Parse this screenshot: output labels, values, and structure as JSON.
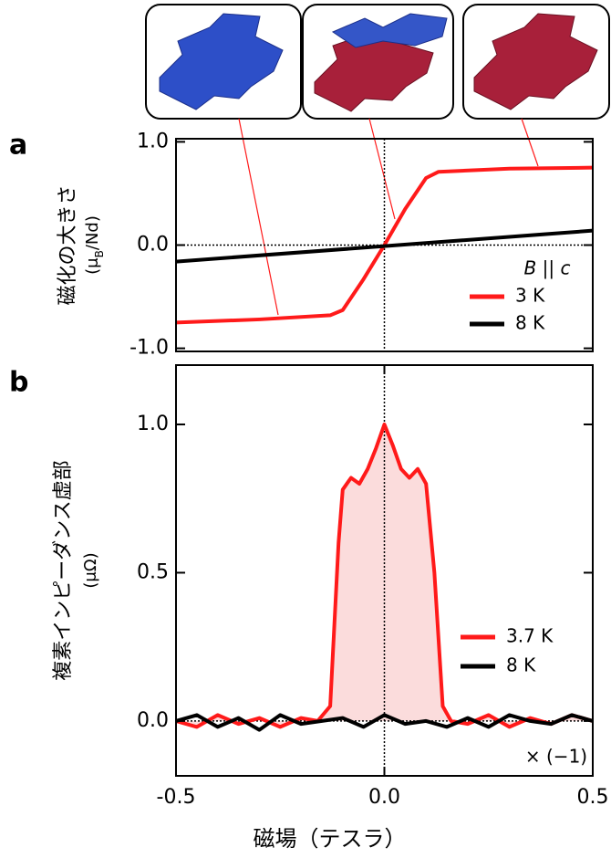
{
  "chart_data": [
    {
      "type": "line",
      "panel_label": "a",
      "y_label": "磁化の大きさ",
      "y_unit_parts": [
        "(μ",
        "B",
        "/Nd)"
      ],
      "annotation": "B || c",
      "xlim": [
        -0.5,
        0.5
      ],
      "ylim": [
        -1.03,
        1.03
      ],
      "yticks": [
        {
          "value": -1,
          "label": "-1.0"
        },
        {
          "value": 0,
          "label": "0.0"
        },
        {
          "value": 1,
          "label": "1.0"
        }
      ],
      "series": [
        {
          "name": "3 K",
          "color": "#ff1a1a",
          "x": [
            -0.5,
            -0.3,
            -0.13,
            -0.1,
            -0.05,
            0,
            0.05,
            0.1,
            0.13,
            0.3,
            0.5
          ],
          "values": [
            -0.75,
            -0.72,
            -0.68,
            -0.63,
            -0.33,
            0,
            0.35,
            0.65,
            0.71,
            0.74,
            0.75
          ]
        },
        {
          "name": "8 K",
          "color": "#000000",
          "x": [
            -0.5,
            0,
            0.5
          ],
          "values": [
            -0.16,
            -0.01,
            0.14
          ]
        }
      ]
    },
    {
      "type": "line",
      "panel_label": "b",
      "y_label": "複素インピーダンス虚部",
      "y_unit": "(μΩ)",
      "x_label": "磁場（テスラ）",
      "annotation": "× (−1)",
      "xlim": [
        -0.5,
        0.5
      ],
      "ylim": [
        -0.185,
        1.2
      ],
      "xticks": [
        {
          "value": -0.5,
          "label": "-0.5"
        },
        {
          "value": 0,
          "label": "0.0"
        },
        {
          "value": 0.5,
          "label": "0.5"
        }
      ],
      "yticks": [
        {
          "value": 0,
          "label": "0.0"
        },
        {
          "value": 0.5,
          "label": "0.5"
        },
        {
          "value": 1,
          "label": "1.0"
        }
      ],
      "series": [
        {
          "name": "3.7 K",
          "color": "#ff1a1a",
          "fill": "#fbdcdc",
          "x": [
            -0.5,
            -0.45,
            -0.4,
            -0.35,
            -0.3,
            -0.25,
            -0.2,
            -0.16,
            -0.13,
            -0.11,
            -0.1,
            -0.08,
            -0.06,
            -0.04,
            -0.02,
            0,
            0.02,
            0.04,
            0.06,
            0.08,
            0.1,
            0.12,
            0.14,
            0.16,
            0.2,
            0.25,
            0.3,
            0.35,
            0.4,
            0.45,
            0.5
          ],
          "values": [
            0.0,
            -0.02,
            0.02,
            -0.01,
            0.01,
            -0.02,
            0.01,
            0.0,
            0.05,
            0.6,
            0.78,
            0.82,
            0.8,
            0.85,
            0.92,
            1.0,
            0.93,
            0.85,
            0.82,
            0.85,
            0.8,
            0.5,
            0.05,
            0.0,
            -0.01,
            0.02,
            -0.02,
            0.01,
            -0.01,
            0.02,
            0.0
          ]
        },
        {
          "name": "8 K",
          "color": "#000000",
          "x": [
            -0.5,
            -0.45,
            -0.4,
            -0.35,
            -0.3,
            -0.25,
            -0.2,
            -0.15,
            -0.1,
            -0.05,
            0,
            0.05,
            0.1,
            0.15,
            0.2,
            0.25,
            0.3,
            0.35,
            0.4,
            0.45,
            0.5
          ],
          "values": [
            0.0,
            0.02,
            -0.02,
            0.01,
            -0.03,
            0.02,
            -0.01,
            0.0,
            0.01,
            -0.02,
            0.02,
            -0.01,
            0.0,
            -0.02,
            0.01,
            -0.02,
            0.02,
            0.0,
            -0.01,
            0.02,
            0.0
          ]
        }
      ]
    }
  ]
}
